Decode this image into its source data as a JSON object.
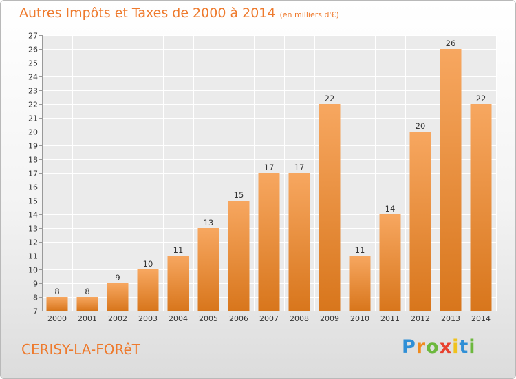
{
  "title": "Autres Impôts et Taxes de 2000 à 2014",
  "unit": "(en milliers d'€)",
  "location": "CERISY-LA-FORêT",
  "brand": {
    "letters": [
      "P",
      "r",
      "o",
      "x",
      "i",
      "t",
      "i"
    ],
    "colors": [
      "#2f8fd6",
      "#f08a1d",
      "#6cb83d",
      "#e8412f",
      "#f0c21d",
      "#2f8fd6",
      "#6cb83d"
    ]
  },
  "colors": {
    "bar_top": "#f7a760",
    "bar_bottom": "#d8761c",
    "accent": "#ee7a2d"
  },
  "chart_data": {
    "type": "bar",
    "title": "Autres Impôts et Taxes de 2000 à 2014",
    "subtitle": "(en milliers d'€)",
    "categories": [
      "2000",
      "2001",
      "2002",
      "2003",
      "2004",
      "2005",
      "2006",
      "2007",
      "2008",
      "2009",
      "2010",
      "2011",
      "2012",
      "2013",
      "2014"
    ],
    "values": [
      8,
      8,
      9,
      10,
      11,
      13,
      15,
      17,
      17,
      22,
      11,
      14,
      20,
      26,
      22
    ],
    "ylim": [
      7,
      27
    ],
    "yticks": [
      7,
      8,
      9,
      10,
      11,
      12,
      13,
      14,
      15,
      16,
      17,
      18,
      19,
      20,
      21,
      22,
      23,
      24,
      25,
      26,
      27
    ],
    "grid": true,
    "legend": "none"
  }
}
